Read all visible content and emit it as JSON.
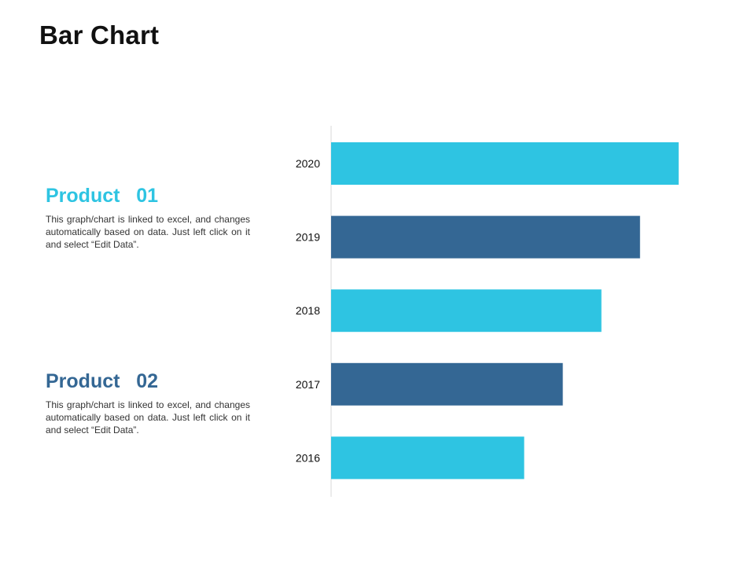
{
  "page": {
    "title": "Bar Chart"
  },
  "products": [
    {
      "title": "Product   01",
      "description": "This graph/chart is linked to excel, and changes automatically based on data. Just left click on it and select “Edit Data”.",
      "color": "#2EC4E2"
    },
    {
      "title": "Product   02",
      "description": "This graph/chart is linked to excel, and changes automatically based on data. Just left click on it and select “Edit Data”.",
      "color": "#346794"
    }
  ],
  "chart_data": {
    "type": "bar",
    "orientation": "horizontal",
    "title": "",
    "xlabel": "",
    "ylabel": "",
    "categories": [
      "2020",
      "2019",
      "2018",
      "2017",
      "2016"
    ],
    "values": [
      90,
      80,
      70,
      60,
      50
    ],
    "bar_colors": [
      "#2EC4E2",
      "#346794",
      "#2EC4E2",
      "#346794",
      "#2EC4E2"
    ],
    "xlim": [
      0,
      100
    ],
    "grid": false,
    "legend": "none"
  }
}
